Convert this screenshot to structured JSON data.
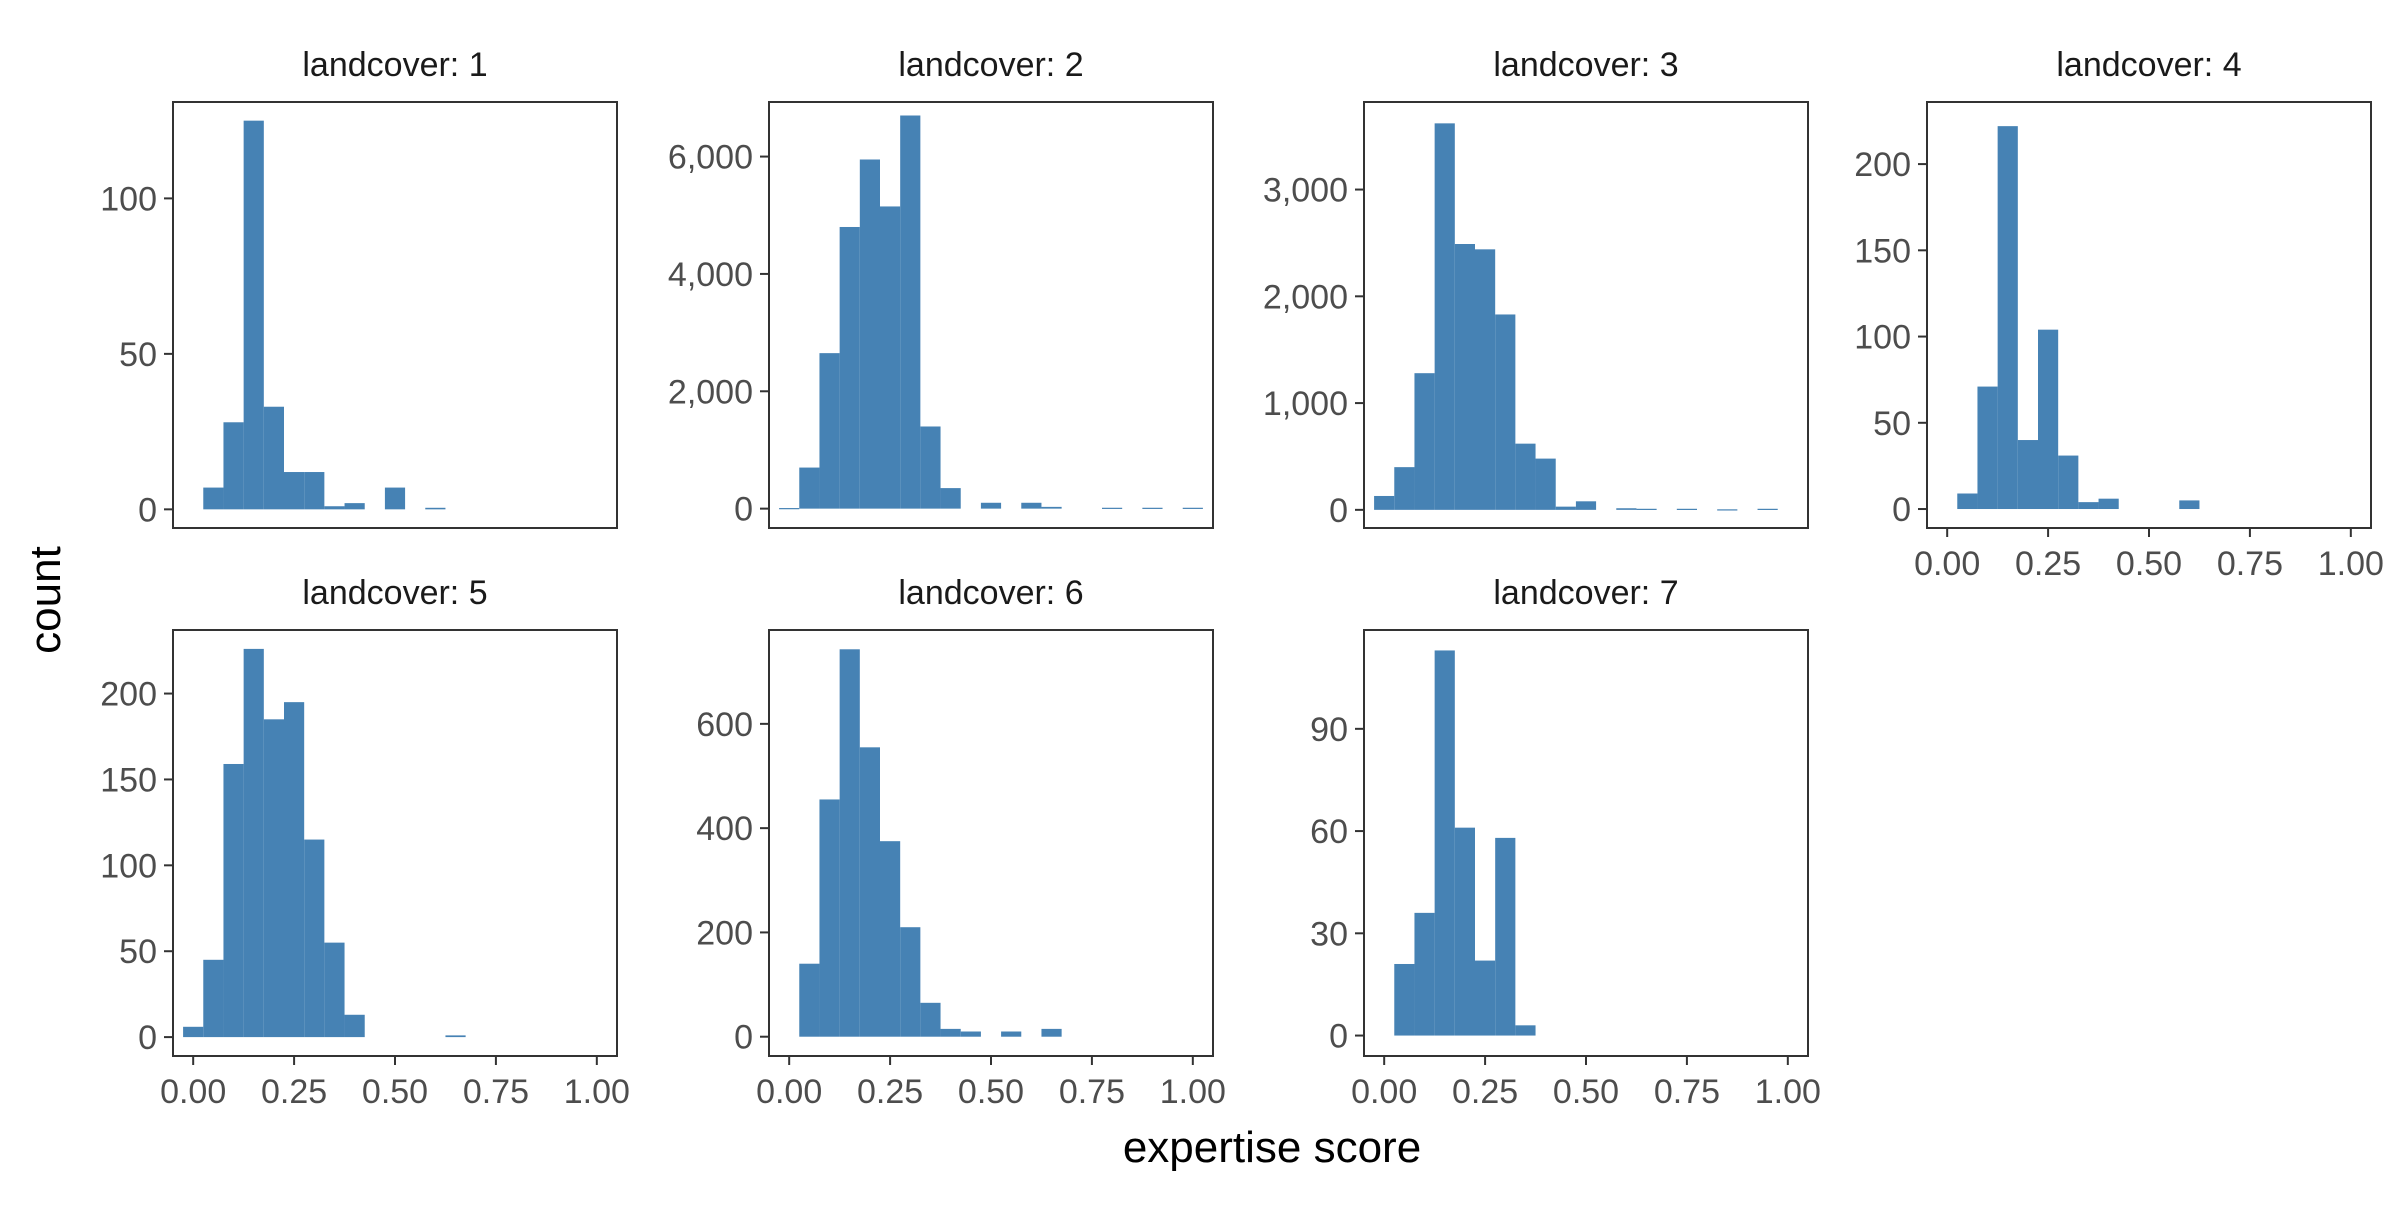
{
  "chart_data": {
    "type": "bar",
    "xlabel": "expertise score",
    "ylabel": "count",
    "bar_color": "#4682B4",
    "x_axis": {
      "range": [
        -0.05,
        1.05
      ],
      "ticks": [
        "0.00",
        "0.25",
        "0.50",
        "0.75",
        "1.00"
      ],
      "tick_values": [
        0,
        0.25,
        0.5,
        0.75,
        1.0
      ]
    },
    "bin_width": 0.05,
    "bin_centers": [
      0.0,
      0.05,
      0.1,
      0.15,
      0.2,
      0.25,
      0.3,
      0.35,
      0.4,
      0.45,
      0.5,
      0.55,
      0.6,
      0.65,
      0.7,
      0.75,
      0.8,
      0.85,
      0.9,
      0.95,
      1.0
    ],
    "facets": [
      {
        "title": "landcover: 1",
        "ylim": [
          -6,
          131
        ],
        "yticks": [
          0,
          50,
          100
        ],
        "ytick_labels": [
          "0",
          "50",
          "100"
        ],
        "show_x_axis": false,
        "values": [
          0,
          7,
          28,
          125,
          33,
          12,
          12,
          1,
          2,
          0,
          7,
          0,
          0.5,
          0,
          0,
          0,
          0,
          0,
          0,
          0,
          0
        ]
      },
      {
        "title": "landcover: 2",
        "ylim": [
          -330,
          6930
        ],
        "yticks": [
          0,
          2000,
          4000,
          6000
        ],
        "ytick_labels": [
          "0",
          "2,000",
          "4,000",
          "6,000"
        ],
        "show_x_axis": false,
        "values": [
          10,
          700,
          2650,
          4800,
          5950,
          5150,
          6700,
          1400,
          350,
          0,
          100,
          0,
          100,
          30,
          0,
          0,
          15,
          0,
          15,
          0,
          15
        ]
      },
      {
        "title": "landcover: 3",
        "ylim": [
          -170,
          3820
        ],
        "yticks": [
          0,
          1000,
          2000,
          3000
        ],
        "ytick_labels": [
          "0",
          "1,000",
          "2,000",
          "3,000"
        ],
        "show_x_axis": false,
        "values": [
          130,
          400,
          1280,
          3620,
          2490,
          2440,
          1830,
          620,
          480,
          30,
          80,
          0,
          15,
          10,
          0,
          10,
          0,
          5,
          0,
          10,
          0
        ]
      },
      {
        "title": "landcover: 4",
        "ylim": [
          -11,
          236
        ],
        "yticks": [
          0,
          50,
          100,
          150,
          200
        ],
        "ytick_labels": [
          "0",
          "50",
          "100",
          "150",
          "200"
        ],
        "show_x_axis": true,
        "values": [
          0,
          9,
          71,
          222,
          40,
          104,
          31,
          4,
          6,
          0,
          0,
          0,
          5,
          0,
          0,
          0,
          0,
          0,
          0,
          0,
          0
        ]
      },
      {
        "title": "landcover: 5",
        "ylim": [
          -11,
          237
        ],
        "yticks": [
          0,
          50,
          100,
          150,
          200
        ],
        "ytick_labels": [
          "0",
          "50",
          "100",
          "150",
          "200"
        ],
        "show_x_axis": true,
        "values": [
          6,
          45,
          159,
          226,
          185,
          195,
          115,
          55,
          13,
          0,
          0,
          0,
          0,
          1,
          0,
          0,
          0,
          0,
          0,
          0,
          0
        ]
      },
      {
        "title": "landcover: 6",
        "ylim": [
          -37,
          780
        ],
        "yticks": [
          0,
          200,
          400,
          600
        ],
        "ytick_labels": [
          "0",
          "200",
          "400",
          "600"
        ],
        "show_x_axis": true,
        "values": [
          0,
          140,
          455,
          743,
          555,
          375,
          210,
          65,
          15,
          10,
          0,
          10,
          0,
          15,
          0,
          0,
          0,
          0,
          0,
          0,
          0
        ]
      },
      {
        "title": "landcover: 7",
        "ylim": [
          -6,
          119
        ],
        "yticks": [
          0,
          30,
          60,
          90
        ],
        "ytick_labels": [
          "0",
          "30",
          "60",
          "90"
        ],
        "show_x_axis": true,
        "values": [
          0,
          21,
          36,
          113,
          61,
          22,
          58,
          3,
          0,
          0,
          0,
          0,
          0,
          0,
          0,
          0,
          0,
          0,
          0,
          0,
          0
        ]
      }
    ]
  }
}
